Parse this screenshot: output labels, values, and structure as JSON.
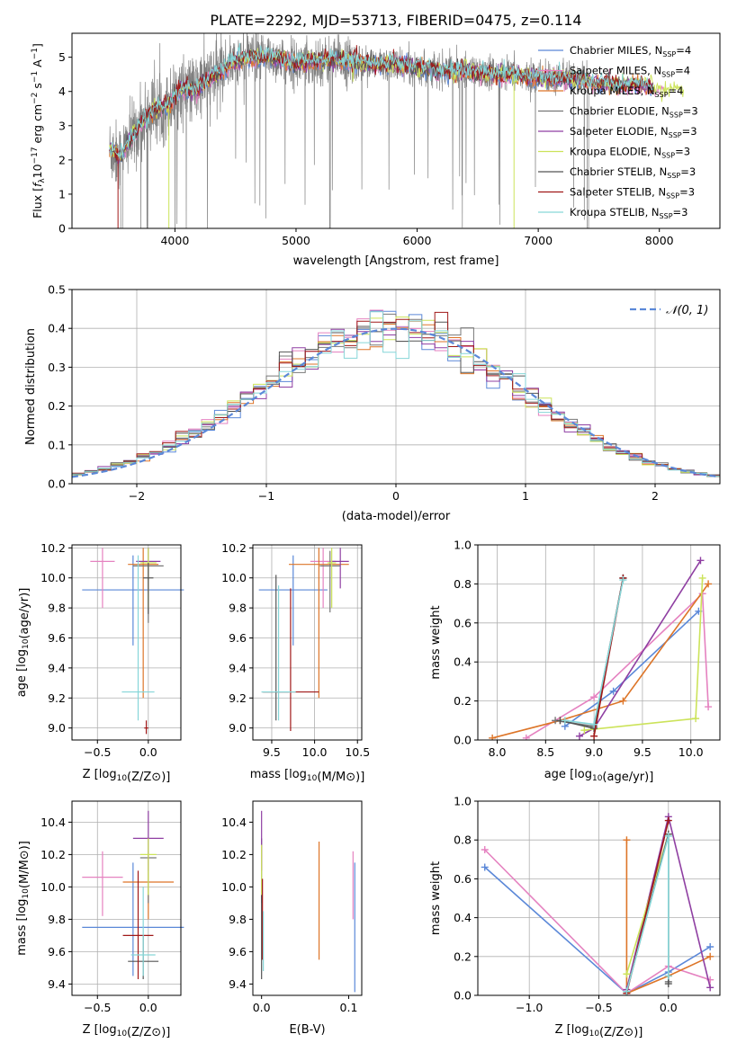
{
  "figure": {
    "title": "PLATE=2292, MJD=53713, FIBERID=0475, z=0.114"
  },
  "colors": {
    "series": [
      "#5b88d8",
      "#e582c0",
      "#dd7528",
      "#777777",
      "#8f3fa2",
      "#cce35a",
      "#555555",
      "#a01818",
      "#86d6d8"
    ],
    "data_spectrum": "#808080",
    "grid": "#b0b0b0"
  },
  "chart_data": [
    {
      "id": "spectrum",
      "type": "line",
      "xlabel": "wavelength [Angstrom, rest frame]",
      "ylabel_parts": [
        "Flux [",
        "f",
        "λ",
        "10",
        "−17",
        " erg cm",
        "−2",
        " s",
        "−1",
        " A",
        "−1",
        "]"
      ],
      "xlim": [
        3150,
        8500
      ],
      "ylim": [
        0,
        5.7
      ],
      "xticks": [
        4000,
        5000,
        6000,
        7000,
        8000
      ],
      "yticks": [
        0,
        1,
        2,
        3,
        4,
        5
      ],
      "grid": false,
      "legend_position": "top-right",
      "legend": [
        {
          "label": "Chabrier MILES, N",
          "sub": "SSP",
          "suffix": "=4"
        },
        {
          "label": "Salpeter MILES, N",
          "sub": "SSP",
          "suffix": "=4"
        },
        {
          "label": "Kroupa MILES, N",
          "sub": "SSP",
          "suffix": "=4"
        },
        {
          "label": "Chabrier ELODIE, N",
          "sub": "SSP",
          "suffix": "=3"
        },
        {
          "label": "Salpeter ELODIE, N",
          "sub": "SSP",
          "suffix": "=3"
        },
        {
          "label": "Kroupa ELODIE, N",
          "sub": "SSP",
          "suffix": "=3"
        },
        {
          "label": "Chabrier STELIB, N",
          "sub": "SSP",
          "suffix": "=3"
        },
        {
          "label": "Salpeter STELIB, N",
          "sub": "SSP",
          "suffix": "=3"
        },
        {
          "label": "Kroupa STELIB, N",
          "sub": "SSP",
          "suffix": "=3"
        }
      ],
      "continuum": [
        [
          3460,
          2.3
        ],
        [
          3550,
          2.1
        ],
        [
          3650,
          2.7
        ],
        [
          3750,
          3.2
        ],
        [
          3850,
          3.5
        ],
        [
          3950,
          3.6
        ],
        [
          4050,
          4.1
        ],
        [
          4150,
          4.0
        ],
        [
          4250,
          4.3
        ],
        [
          4350,
          4.5
        ],
        [
          4450,
          4.8
        ],
        [
          4600,
          5.0
        ],
        [
          4800,
          5.0
        ],
        [
          5000,
          4.8
        ],
        [
          5200,
          4.9
        ],
        [
          5400,
          4.9
        ],
        [
          5600,
          4.8
        ],
        [
          5800,
          4.8
        ],
        [
          6000,
          4.7
        ],
        [
          6200,
          4.6
        ],
        [
          6400,
          4.6
        ],
        [
          6600,
          4.5
        ],
        [
          6800,
          4.5
        ],
        [
          7000,
          4.4
        ],
        [
          7200,
          4.4
        ],
        [
          7400,
          4.3
        ],
        [
          7600,
          4.2
        ],
        [
          7800,
          4.2
        ],
        [
          8000,
          4.1
        ],
        [
          8200,
          4.0
        ]
      ],
      "data_xrange": [
        3460,
        7430
      ]
    },
    {
      "id": "residuals",
      "type": "bar",
      "xlabel": "(data-model)/error",
      "ylabel": "Normed distribution",
      "xlim": [
        -2.5,
        2.5
      ],
      "ylim": [
        0,
        0.5
      ],
      "xticks": [
        -2,
        -1,
        0,
        1,
        2
      ],
      "yticks": [
        0.0,
        0.1,
        0.2,
        0.3,
        0.4,
        0.5
      ],
      "grid": true,
      "legend_position": "top-right",
      "legend": [
        {
          "label": "𝒩(0, 1)"
        }
      ],
      "bin_width": 0.1
    },
    {
      "id": "age_vs_Z",
      "type": "scatter",
      "xlabel": "Z [log10(Z/Z⊙)]",
      "ylabel": "age  [log10(age/yr)]",
      "xlim": [
        -0.75,
        0.32
      ],
      "ylim": [
        8.92,
        10.22
      ],
      "xticks": [
        -0.5,
        0.0
      ],
      "yticks": [
        9.0,
        9.2,
        9.4,
        9.6,
        9.8,
        10.0,
        10.2
      ],
      "grid": true,
      "points": [
        {
          "series": 0,
          "x": -0.15,
          "y": 9.92,
          "xerr": 0.5,
          "yerr": [
            9.55,
            10.15
          ]
        },
        {
          "series": 1,
          "x": -0.45,
          "y": 10.11,
          "xerr": 0.12,
          "yerr": [
            9.8,
            10.2
          ]
        },
        {
          "series": 2,
          "x": -0.05,
          "y": 10.09,
          "xerr": 0.15,
          "yerr": [
            9.2,
            10.2
          ]
        },
        {
          "series": 3,
          "x": 0.0,
          "y": 10.08,
          "xerr": 0.15,
          "yerr": [
            9.7,
            10.2
          ]
        },
        {
          "series": 4,
          "x": 0.0,
          "y": 10.11,
          "xerr": 0.12,
          "yerr": [
            9.9,
            10.2
          ]
        },
        {
          "series": 5,
          "x": 0.0,
          "y": 10.1,
          "xerr": 0.08,
          "yerr": [
            9.8,
            10.2
          ]
        },
        {
          "series": 6,
          "x": 0.0,
          "y": 10.0,
          "xerr": 0.05,
          "yerr": [
            9.76,
            10.1
          ]
        },
        {
          "series": 7,
          "x": -0.02,
          "y": 9.0,
          "xerr": 0.02,
          "yerr": [
            8.96,
            9.05
          ]
        },
        {
          "series": 8,
          "x": -0.1,
          "y": 9.24,
          "xerr": 0.16,
          "yerr": [
            9.05,
            10.15
          ]
        }
      ]
    },
    {
      "id": "age_vs_mass",
      "type": "scatter",
      "xlabel": "mass [log10(M/M⊙)]",
      "ylabel": "",
      "xlim": [
        9.28,
        10.55
      ],
      "ylim": [
        8.92,
        10.22
      ],
      "xticks": [
        9.5,
        10.0,
        10.5
      ],
      "yticks": [
        9.0,
        9.2,
        9.4,
        9.6,
        9.8,
        10.0,
        10.2
      ],
      "grid": true,
      "points": [
        {
          "series": 0,
          "x": 9.75,
          "y": 9.92,
          "xerr": 0.4,
          "yerr": [
            9.55,
            10.15
          ]
        },
        {
          "series": 1,
          "x": 10.1,
          "y": 10.11,
          "xerr": 0.15,
          "yerr": [
            9.8,
            10.2
          ]
        },
        {
          "series": 2,
          "x": 10.05,
          "y": 10.09,
          "xerr": 0.35,
          "yerr": [
            9.2,
            10.2
          ]
        },
        {
          "series": 3,
          "x": 10.18,
          "y": 10.08,
          "xerr": 0.12,
          "yerr": [
            9.77,
            10.18
          ]
        },
        {
          "series": 4,
          "x": 10.3,
          "y": 10.11,
          "xerr": 0.1,
          "yerr": [
            9.93,
            10.2
          ]
        },
        {
          "series": 5,
          "x": 10.2,
          "y": 10.1,
          "xerr": 0.05,
          "yerr": [
            9.8,
            10.2
          ]
        },
        {
          "series": 6,
          "x": 9.55,
          "y": 9.24,
          "xerr": 0.15,
          "yerr": [
            9.05,
            10.02
          ]
        },
        {
          "series": 7,
          "x": 9.72,
          "y": 9.24,
          "xerr": 0.33,
          "yerr": [
            8.98,
            9.93
          ]
        },
        {
          "series": 8,
          "x": 9.58,
          "y": 9.24,
          "xerr": 0.2,
          "yerr": [
            9.05,
            9.95
          ]
        }
      ]
    },
    {
      "id": "weight_vs_age",
      "type": "line",
      "xlabel": "age  [log10(age/yr)]",
      "ylabel": "mass weight",
      "xlim": [
        7.8,
        10.3
      ],
      "ylim": [
        0,
        1.0
      ],
      "xticks": [
        8.0,
        8.5,
        9.0,
        9.5,
        10.0
      ],
      "yticks": [
        0.0,
        0.2,
        0.4,
        0.6,
        0.8,
        1.0
      ],
      "grid": true,
      "series": [
        {
          "s": 0,
          "pts": [
            [
              8.7,
              0.07
            ],
            [
              9.2,
              0.25
            ],
            [
              10.08,
              0.66
            ]
          ]
        },
        {
          "s": 1,
          "pts": [
            [
              8.3,
              0.01
            ],
            [
              9.0,
              0.22
            ],
            [
              10.12,
              0.75
            ],
            [
              10.18,
              0.17
            ]
          ]
        },
        {
          "s": 2,
          "pts": [
            [
              7.95,
              0.01
            ],
            [
              8.65,
              0.1
            ],
            [
              9.3,
              0.2
            ],
            [
              10.18,
              0.8
            ]
          ]
        },
        {
          "s": 3,
          "pts": [
            [
              8.6,
              0.1
            ],
            [
              9.0,
              0.07
            ],
            [
              9.3,
              0.83
            ]
          ]
        },
        {
          "s": 4,
          "pts": [
            [
              8.85,
              0.02
            ],
            [
              9.0,
              0.06
            ],
            [
              10.1,
              0.92
            ]
          ]
        },
        {
          "s": 5,
          "pts": [
            [
              8.9,
              0.05
            ],
            [
              10.05,
              0.11
            ],
            [
              10.12,
              0.83
            ]
          ]
        },
        {
          "s": 6,
          "pts": [
            [
              8.65,
              0.1
            ],
            [
              9.0,
              0.06
            ],
            [
              9.3,
              0.83
            ]
          ]
        },
        {
          "s": 7,
          "pts": [
            [
              9.0,
              0.02
            ],
            [
              9.3,
              0.83
            ]
          ]
        },
        {
          "s": 8,
          "pts": [
            [
              8.7,
              0.1
            ],
            [
              9.0,
              0.08
            ],
            [
              9.3,
              0.82
            ]
          ]
        }
      ]
    },
    {
      "id": "mass_vs_Z",
      "type": "scatter",
      "xlabel": "Z [log10(Z/Z⊙)]",
      "ylabel": "mass [log10(M/M⊙)]",
      "xlim": [
        -0.75,
        0.32
      ],
      "ylim": [
        9.33,
        10.53
      ],
      "xticks": [
        -0.5,
        0.0
      ],
      "yticks": [
        9.4,
        9.6,
        9.8,
        10.0,
        10.2,
        10.4
      ],
      "grid": true,
      "points": [
        {
          "series": 0,
          "x": -0.15,
          "y": 9.75,
          "xerr": 0.5,
          "yerr": [
            9.45,
            10.15
          ]
        },
        {
          "series": 1,
          "x": -0.45,
          "y": 10.06,
          "xerr": 0.2,
          "yerr": [
            9.82,
            10.22
          ]
        },
        {
          "series": 2,
          "x": 0.0,
          "y": 10.03,
          "xerr": 0.25,
          "yerr": [
            9.8,
            10.22
          ]
        },
        {
          "series": 3,
          "x": 0.0,
          "y": 10.18,
          "xerr": 0.08,
          "yerr": [
            9.9,
            10.3
          ]
        },
        {
          "series": 4,
          "x": 0.0,
          "y": 10.3,
          "xerr": 0.15,
          "yerr": [
            10.1,
            10.47
          ]
        },
        {
          "series": 5,
          "x": 0.0,
          "y": 10.2,
          "xerr": 0.08,
          "yerr": [
            9.95,
            10.3
          ]
        },
        {
          "series": 6,
          "x": -0.05,
          "y": 9.54,
          "xerr": 0.15,
          "yerr": [
            9.43,
            9.7
          ]
        },
        {
          "series": 7,
          "x": -0.1,
          "y": 9.7,
          "xerr": 0.15,
          "yerr": [
            9.43,
            10.1
          ]
        },
        {
          "series": 8,
          "x": -0.05,
          "y": 9.58,
          "xerr": 0.12,
          "yerr": [
            9.45,
            10.0
          ]
        }
      ]
    },
    {
      "id": "mass_vs_ebv",
      "type": "scatter",
      "xlabel": "E(B-V)",
      "ylabel": "",
      "xlim": [
        -0.01,
        0.115
      ],
      "ylim": [
        9.33,
        10.53
      ],
      "xticks": [
        0.0,
        0.1
      ],
      "yticks": [
        9.4,
        9.6,
        9.8,
        10.0,
        10.2,
        10.4
      ],
      "grid": false,
      "bars": [
        {
          "series": 0,
          "x": 0.107,
          "y": [
            9.35,
            10.15
          ]
        },
        {
          "series": 1,
          "x": 0.105,
          "y": [
            9.8,
            10.22
          ]
        },
        {
          "series": 2,
          "x": 0.066,
          "y": [
            9.55,
            10.28
          ]
        },
        {
          "series": 3,
          "x": 0.0,
          "y": [
            9.9,
            10.3
          ]
        },
        {
          "series": 4,
          "x": 0.0,
          "y": [
            10.1,
            10.47
          ]
        },
        {
          "series": 5,
          "x": 0.0,
          "y": [
            9.95,
            10.26
          ]
        },
        {
          "series": 6,
          "x": 0.0,
          "y": [
            9.43,
            9.95
          ]
        },
        {
          "series": 7,
          "x": 0.001,
          "y": [
            9.55,
            10.05
          ]
        },
        {
          "series": 8,
          "x": 0.002,
          "y": [
            9.48,
            9.85
          ]
        }
      ]
    },
    {
      "id": "weight_vs_Z",
      "type": "line",
      "xlabel": "Z [log10(Z/Z⊙)]",
      "ylabel": "mass weight",
      "xlim": [
        -1.37,
        0.37
      ],
      "ylim": [
        0,
        1.0
      ],
      "xticks": [
        -1.0,
        -0.5,
        0.0
      ],
      "yticks": [
        0.0,
        0.2,
        0.4,
        0.6,
        0.8,
        1.0
      ],
      "grid": true,
      "series": [
        {
          "s": 0,
          "pts": [
            [
              -1.32,
              0.66
            ],
            [
              -0.3,
              0.01
            ],
            [
              0.0,
              0.12
            ],
            [
              0.3,
              0.25
            ]
          ]
        },
        {
          "s": 1,
          "pts": [
            [
              -1.32,
              0.75
            ],
            [
              -0.3,
              0.01
            ],
            [
              0.0,
              0.15
            ],
            [
              0.3,
              0.08
            ]
          ]
        },
        {
          "s": 2,
          "pts": [
            [
              -0.3,
              0.8
            ],
            [
              -0.3,
              0.01
            ],
            [
              0.0,
              0.1
            ],
            [
              0.3,
              0.2
            ]
          ]
        },
        {
          "s": 3,
          "pts": [
            [
              -0.3,
              0.02
            ],
            [
              0.0,
              0.83
            ],
            [
              0.0,
              0.07
            ]
          ]
        },
        {
          "s": 4,
          "pts": [
            [
              -0.3,
              0.03
            ],
            [
              0.0,
              0.92
            ],
            [
              0.3,
              0.04
            ]
          ]
        },
        {
          "s": 5,
          "pts": [
            [
              -0.3,
              0.11
            ],
            [
              0.0,
              0.83
            ]
          ]
        },
        {
          "s": 6,
          "pts": [
            [
              -0.3,
              0.02
            ],
            [
              0.0,
              0.83
            ],
            [
              0.0,
              0.06
            ]
          ]
        },
        {
          "s": 7,
          "pts": [
            [
              -0.3,
              0.01
            ],
            [
              0.0,
              0.9
            ]
          ]
        },
        {
          "s": 8,
          "pts": [
            [
              -0.3,
              0.02
            ],
            [
              0.0,
              0.82
            ],
            [
              0.0,
              0.1
            ]
          ]
        }
      ]
    }
  ]
}
